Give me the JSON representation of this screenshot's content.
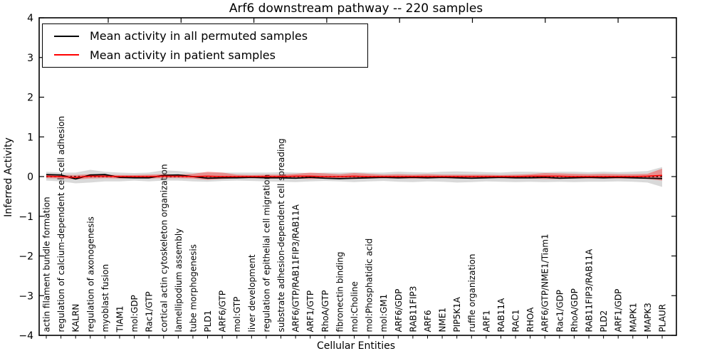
{
  "title": "Arf6 downstream pathway -- 220 samples",
  "axes": {
    "x_label": "Cellular Entities",
    "y_label": "Inferred Activity",
    "y_ticks": [
      4,
      3,
      2,
      1,
      0,
      -1,
      -2,
      -3,
      -4
    ]
  },
  "legend": {
    "items": [
      {
        "label": "Mean activity in all permuted samples",
        "color": "#000000"
      },
      {
        "label": "Mean activity in patient samples",
        "color": "#ff0000"
      }
    ]
  },
  "colors": {
    "background": "#ffffff",
    "spine": "#000000",
    "permuted_line": "#000000",
    "patient_line": "#ff0000",
    "permuted_band": "#777777",
    "patient_band": "#ff0000",
    "zero_line": "#000000"
  },
  "chart_data": {
    "type": "line",
    "title": "Arf6 downstream pathway -- 220 samples",
    "xlabel": "Cellular Entities",
    "ylabel": "Inferred Activity",
    "ylim": [
      -4,
      4
    ],
    "grid": false,
    "legend_position": "upper left",
    "zero_reference_line": true,
    "categories": [
      "actin filament bundle formation",
      "regulation of calcium-dependent cell-cell adhesion",
      "KALRN",
      "regulation of axonogenesis",
      "myoblast fusion",
      "TIAM1",
      "mol:GDP",
      "Rac1/GTP",
      "cortical actin cytoskeleton organization",
      "lamellipodium assembly",
      "tube morphogenesis",
      "PLD1",
      "ARF6/GTP",
      "mol:GTP",
      "liver development",
      "regulation of epithelial cell migration",
      "substrate adhesion-dependent cell spreading",
      "ARF6/GTP/RAB11FIP3/RAB11A",
      "ARF1/GTP",
      "RhoA/GTP",
      "fibronectin binding",
      "mol:Choline",
      "mol:Phosphatidic acid",
      "mol:GM1",
      "ARF6/GDP",
      "RAB11FIP3",
      "ARF6",
      "NME1",
      "PIP5K1A",
      "ruffle organization",
      "ARF1",
      "RAB11A",
      "RAC1",
      "RHOA",
      "ARF6/GTP/NME1/Tiam1",
      "Rac1/GDP",
      "RhoA/GDP",
      "RAB11FIP3/RAB11A",
      "PLD2",
      "ARF1/GDP",
      "MAPK1",
      "MAPK3",
      "PLAUR"
    ],
    "series": [
      {
        "name": "Mean activity in all permuted samples",
        "color": "#000000",
        "values": [
          0.05,
          0.04,
          -0.06,
          0.04,
          0.05,
          -0.02,
          -0.03,
          -0.03,
          0.03,
          0.04,
          0.0,
          -0.04,
          -0.03,
          -0.03,
          -0.02,
          -0.03,
          -0.03,
          -0.04,
          -0.02,
          -0.04,
          -0.05,
          -0.04,
          -0.03,
          -0.02,
          -0.03,
          -0.02,
          -0.03,
          -0.02,
          -0.03,
          -0.04,
          -0.03,
          -0.02,
          -0.03,
          -0.03,
          -0.02,
          -0.04,
          -0.03,
          -0.02,
          -0.03,
          -0.02,
          -0.03,
          -0.04,
          -0.05
        ]
      },
      {
        "name": "Mean activity in patient samples",
        "color": "#ff0000",
        "values": [
          0.01,
          0.0,
          -0.02,
          0.01,
          0.01,
          0.0,
          0.0,
          0.0,
          0.01,
          0.01,
          0.0,
          0.01,
          0.0,
          0.0,
          0.0,
          0.0,
          0.0,
          0.01,
          0.01,
          0.0,
          0.0,
          0.01,
          0.0,
          0.0,
          0.0,
          0.0,
          0.0,
          0.0,
          0.0,
          0.0,
          0.0,
          0.0,
          0.0,
          0.01,
          0.01,
          0.01,
          0.0,
          0.0,
          0.0,
          0.0,
          0.0,
          0.01,
          0.03
        ]
      }
    ],
    "bands": [
      {
        "name": "permuted samples range",
        "color": "#777777",
        "opacity": 0.28,
        "upper": [
          0.12,
          0.1,
          0.1,
          0.17,
          0.12,
          0.1,
          0.09,
          0.1,
          0.16,
          0.14,
          0.1,
          0.1,
          0.1,
          0.1,
          0.1,
          0.1,
          0.11,
          0.1,
          0.09,
          0.1,
          0.1,
          0.11,
          0.1,
          0.1,
          0.12,
          0.11,
          0.1,
          0.12,
          0.13,
          0.12,
          0.11,
          0.1,
          0.12,
          0.12,
          0.11,
          0.12,
          0.12,
          0.11,
          0.12,
          0.11,
          0.12,
          0.14,
          0.24
        ],
        "lower": [
          -0.1,
          -0.12,
          -0.17,
          -0.15,
          -0.12,
          -0.12,
          -0.1,
          -0.12,
          -0.1,
          -0.1,
          -0.12,
          -0.13,
          -0.11,
          -0.1,
          -0.11,
          -0.12,
          -0.13,
          -0.14,
          -0.12,
          -0.11,
          -0.12,
          -0.14,
          -0.12,
          -0.11,
          -0.13,
          -0.14,
          -0.12,
          -0.13,
          -0.15,
          -0.14,
          -0.12,
          -0.13,
          -0.14,
          -0.13,
          -0.14,
          -0.13,
          -0.14,
          -0.13,
          -0.13,
          -0.12,
          -0.13,
          -0.15,
          -0.26
        ]
      },
      {
        "name": "patient samples range",
        "color": "#ff0000",
        "opacity": 0.34,
        "upper": [
          0.05,
          0.04,
          0.04,
          0.06,
          0.05,
          0.04,
          0.04,
          0.05,
          0.06,
          0.05,
          0.07,
          0.12,
          0.1,
          0.05,
          0.04,
          0.05,
          0.05,
          0.07,
          0.1,
          0.08,
          0.06,
          0.09,
          0.07,
          0.05,
          0.06,
          0.05,
          0.06,
          0.05,
          0.05,
          0.05,
          0.05,
          0.04,
          0.05,
          0.06,
          0.09,
          0.08,
          0.07,
          0.06,
          0.07,
          0.06,
          0.06,
          0.07,
          0.2
        ],
        "lower": [
          -0.04,
          -0.05,
          -0.07,
          -0.05,
          -0.04,
          -0.05,
          -0.04,
          -0.05,
          -0.04,
          -0.04,
          -0.05,
          -0.08,
          -0.06,
          -0.04,
          -0.04,
          -0.05,
          -0.05,
          -0.05,
          -0.06,
          -0.05,
          -0.05,
          -0.06,
          -0.05,
          -0.04,
          -0.05,
          -0.05,
          -0.05,
          -0.04,
          -0.05,
          -0.05,
          -0.04,
          -0.04,
          -0.05,
          -0.05,
          -0.06,
          -0.06,
          -0.05,
          -0.05,
          -0.05,
          -0.05,
          -0.05,
          -0.06,
          -0.1
        ]
      }
    ]
  }
}
